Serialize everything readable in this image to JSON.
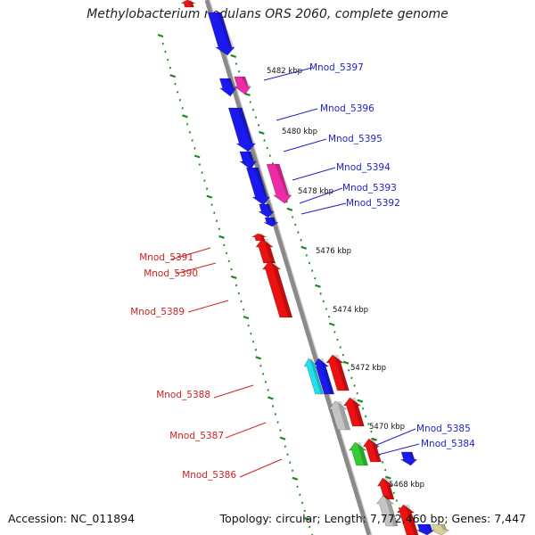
{
  "title": "Methylobacterium nodulans ORS 2060, complete genome",
  "footer": {
    "accession": "Accession: NC_011894",
    "summary": "Topology: circular; Length: 7,772,460 bp; Genes: 7,447"
  },
  "colors": {
    "backbone": "#8a8a8a",
    "dots": "#1d8a1d",
    "forward_label": "#2222cc",
    "reverse_label": "#cc2222",
    "gene_blue": "#1a1af0",
    "gene_pink": "#ee2aa6",
    "gene_red": "#ee1111",
    "gene_cyan": "#22e0f0",
    "gene_grey": "#c4c4c4",
    "gene_green": "#33cc33",
    "gene_tan": "#d8d098"
  },
  "ticks": [
    "5482 kbp",
    "5480 kbp",
    "5478 kbp",
    "5476 kbp",
    "5474 kbp",
    "5472 kbp",
    "5470 kbp",
    "5468 kbp"
  ],
  "forward_labels": [
    "Mnod_5397",
    "Mnod_5396",
    "Mnod_5395",
    "Mnod_5394",
    "Mnod_5393",
    "Mnod_5392",
    "Mnod_5385",
    "Mnod_5384"
  ],
  "reverse_labels": [
    "Mnod_5391",
    "Mnod_5390",
    "Mnod_5389",
    "Mnod_5388",
    "Mnod_5387",
    "Mnod_5386"
  ]
}
